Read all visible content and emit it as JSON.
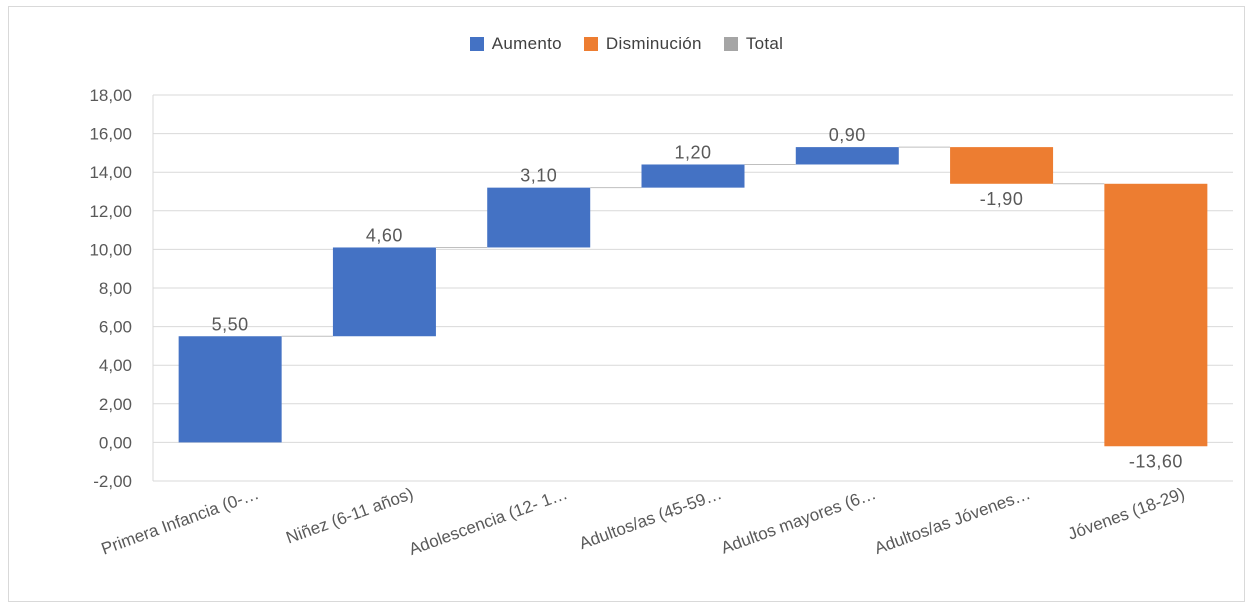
{
  "colors": {
    "increase": "#4472C4",
    "decrease": "#ED7D31",
    "total": "#A5A5A5",
    "grid": "#d9d9d9",
    "text": "#595959"
  },
  "chart_data": {
    "type": "bar",
    "subtype": "waterfall",
    "legend": [
      {
        "name": "Aumento",
        "color": "#4472C4"
      },
      {
        "name": "Disminución",
        "color": "#ED7D31"
      },
      {
        "name": "Total",
        "color": "#A5A5A5"
      }
    ],
    "legend_position": "top",
    "categories": [
      "Primera Infancia (0-…",
      "Niñez (6-11 años)",
      "Adolescencia (12- 1…",
      "Adultos/as (45-59…",
      "Adultos mayores (6…",
      "Adultos/as Jóvenes…",
      "Jóvenes (18-29)"
    ],
    "values": [
      5.5,
      4.6,
      3.1,
      1.2,
      0.9,
      -1.9,
      -13.6
    ],
    "data_labels": [
      "5,50",
      "4,60",
      "3,10",
      "1,20",
      "0,90",
      "-1,90",
      "-13,60"
    ],
    "y_ticks": [
      "18,00",
      "16,00",
      "14,00",
      "12,00",
      "10,00",
      "8,00",
      "6,00",
      "4,00",
      "2,00",
      "0,00",
      "-2,00"
    ],
    "ylim": [
      -2,
      18
    ],
    "grid": true
  }
}
